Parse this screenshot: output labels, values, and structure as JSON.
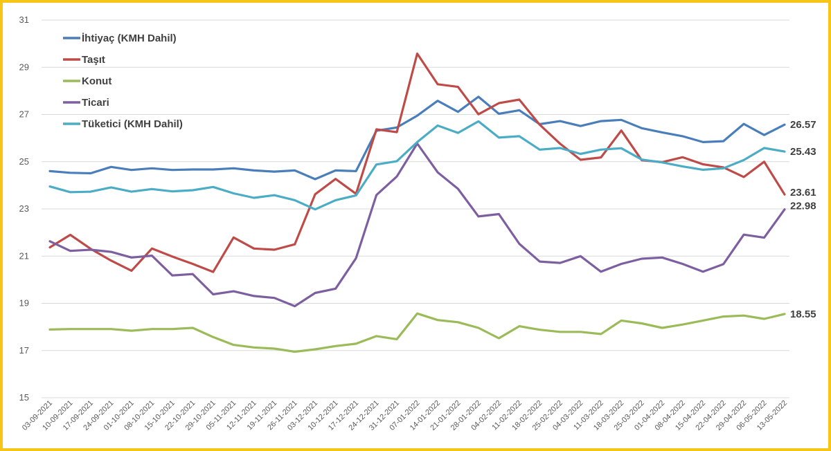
{
  "chart_data": {
    "type": "line",
    "title": "",
    "xlabel": "",
    "ylabel": "",
    "ylim": [
      15,
      31
    ],
    "yticks": [
      15,
      17,
      19,
      21,
      23,
      25,
      27,
      29,
      31
    ],
    "grid": true,
    "legend_position": "top-left",
    "categories": [
      "03-09-2021",
      "10-09-2021",
      "17-09-2021",
      "24-09-2021",
      "01-10-2021",
      "08-10-2021",
      "15-10-2021",
      "22-10-2021",
      "29-10-2021",
      "05-11-2021",
      "12-11-2021",
      "19-11-2021",
      "26-11-2021",
      "03-12-2021",
      "10-12-2021",
      "17-12-2021",
      "24-12-2021",
      "31-12-2021",
      "07-01-2022",
      "14-01-2022",
      "21-01-2022",
      "28-01-2022",
      "04-02-2022",
      "11-02-2022",
      "18-02-2022",
      "25-02-2022",
      "04-03-2022",
      "11-03-2022",
      "18-03-2022",
      "25-03-2022",
      "01-04-2022",
      "08-04-2022",
      "15-04-2022",
      "22-04-2022",
      "29-04-2022",
      "06-05-2022",
      "13-05-2022"
    ],
    "series": [
      {
        "name": "İhtiyaç (KMH Dahil)",
        "color": "#4A7EBB",
        "end_label": "26.57",
        "values": [
          24.6,
          24.53,
          24.51,
          24.78,
          24.65,
          24.72,
          24.65,
          24.67,
          24.67,
          24.72,
          24.63,
          24.58,
          24.63,
          24.26,
          24.63,
          24.6,
          26.31,
          26.45,
          26.95,
          27.58,
          27.11,
          27.75,
          27.03,
          27.18,
          26.59,
          26.72,
          26.51,
          26.72,
          26.77,
          26.42,
          26.24,
          26.08,
          25.83,
          25.87,
          26.6,
          26.13,
          26.57
        ]
      },
      {
        "name": "Taşıt",
        "color": "#BE4B48",
        "end_label": "23.61",
        "values": [
          21.37,
          21.9,
          21.31,
          20.81,
          20.38,
          21.32,
          20.98,
          20.67,
          20.33,
          21.79,
          21.32,
          21.27,
          21.5,
          23.62,
          24.27,
          23.64,
          26.37,
          26.25,
          29.58,
          28.28,
          28.17,
          27.01,
          27.48,
          27.63,
          26.57,
          25.76,
          25.08,
          25.18,
          26.32,
          25.06,
          24.98,
          25.19,
          24.89,
          24.76,
          24.35,
          25.0,
          23.61
        ]
      },
      {
        "name": "Konut",
        "color": "#9BBB59",
        "end_label": "18.55",
        "values": [
          17.89,
          17.91,
          17.91,
          17.91,
          17.84,
          17.91,
          17.91,
          17.96,
          17.57,
          17.24,
          17.13,
          17.08,
          16.95,
          17.05,
          17.19,
          17.29,
          17.61,
          17.48,
          18.57,
          18.29,
          18.2,
          17.96,
          17.52,
          18.03,
          17.88,
          17.79,
          17.79,
          17.7,
          18.27,
          18.15,
          17.96,
          18.1,
          18.27,
          18.44,
          18.48,
          18.34,
          18.55
        ]
      },
      {
        "name": "Ticari",
        "color": "#7D5FA0",
        "end_label": "22.98",
        "values": [
          21.63,
          21.22,
          21.27,
          21.18,
          20.94,
          21.02,
          20.18,
          20.24,
          19.38,
          19.51,
          19.31,
          19.23,
          18.88,
          19.44,
          19.62,
          20.91,
          23.59,
          24.37,
          25.77,
          24.55,
          23.85,
          22.68,
          22.78,
          21.52,
          20.77,
          20.71,
          21.0,
          20.34,
          20.67,
          20.89,
          20.94,
          20.67,
          20.34,
          20.66,
          21.91,
          21.78,
          22.98
        ]
      },
      {
        "name": "Tüketici (KMH Dahil)",
        "color": "#4BACC6",
        "end_label": "25.43",
        "values": [
          23.95,
          23.71,
          23.73,
          23.91,
          23.73,
          23.84,
          23.74,
          23.79,
          23.93,
          23.66,
          23.47,
          23.58,
          23.37,
          22.98,
          23.37,
          23.57,
          24.88,
          25.02,
          25.83,
          26.53,
          26.22,
          26.71,
          26.02,
          26.08,
          25.51,
          25.58,
          25.33,
          25.51,
          25.57,
          25.09,
          24.97,
          24.8,
          24.66,
          24.72,
          25.07,
          25.58,
          25.43
        ]
      }
    ]
  }
}
